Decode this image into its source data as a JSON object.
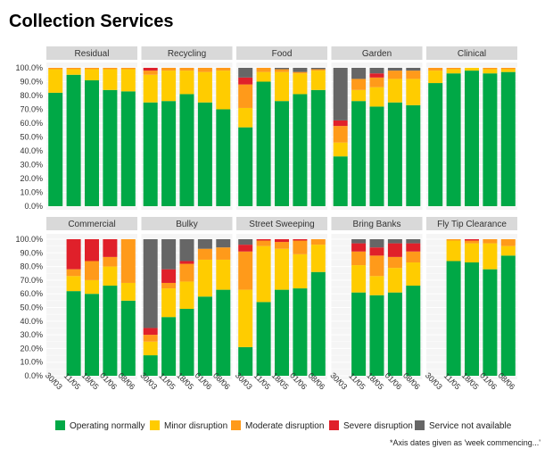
{
  "chart_data": {
    "type": "bar",
    "stacked": true,
    "title": "Collection Services",
    "footnote": "*Axis dates given as 'week commencing...'",
    "categories": [
      "30/03",
      "11/05",
      "18/05",
      "01/06",
      "08/06"
    ],
    "ylim": [
      0,
      100
    ],
    "yticks": [
      "0.0%",
      "10.0%",
      "20.0%",
      "30.0%",
      "40.0%",
      "50.0%",
      "60.0%",
      "70.0%",
      "80.0%",
      "90.0%",
      "100.0%"
    ],
    "legend_position": "bottom",
    "grid": true,
    "series_names": [
      "Operating normally",
      "Minor disruption",
      "Moderate disruption",
      "Severe disruption",
      "Service not available"
    ],
    "series_colors": [
      "#00a846",
      "#ffcc00",
      "#ff9a1a",
      "#e0202a",
      "#666666"
    ],
    "panels": [
      {
        "name": "Residual",
        "values": [
          [
            82,
            17,
            1,
            0,
            0
          ],
          [
            95,
            4,
            1,
            0,
            0
          ],
          [
            91,
            8,
            1,
            0,
            0
          ],
          [
            84,
            15,
            1,
            0,
            0
          ],
          [
            83,
            16,
            1,
            0,
            0
          ]
        ]
      },
      {
        "name": "Recycling",
        "values": [
          [
            75,
            20,
            3,
            2,
            0
          ],
          [
            76,
            22,
            2,
            0,
            0
          ],
          [
            81,
            17,
            2,
            0,
            0
          ],
          [
            75,
            22,
            3,
            0,
            0
          ],
          [
            70,
            28,
            2,
            0,
            0
          ]
        ]
      },
      {
        "name": "Food",
        "values": [
          [
            57,
            14,
            17,
            5,
            7
          ],
          [
            90,
            7,
            3,
            0,
            0
          ],
          [
            76,
            21,
            2,
            0,
            1
          ],
          [
            81,
            15,
            1,
            0,
            3
          ],
          [
            84,
            14,
            1,
            0,
            1
          ]
        ]
      },
      {
        "name": "Garden",
        "values": [
          [
            36,
            10,
            12,
            4,
            38
          ],
          [
            76,
            8,
            8,
            0,
            8
          ],
          [
            72,
            14,
            7,
            3,
            4
          ],
          [
            75,
            17,
            6,
            0,
            2
          ],
          [
            73,
            19,
            6,
            0,
            2
          ]
        ]
      },
      {
        "name": "Clinical",
        "values": [
          [
            89,
            9,
            2,
            0,
            0
          ],
          [
            96,
            3,
            1,
            0,
            0
          ],
          [
            98,
            2,
            0,
            0,
            0
          ],
          [
            96,
            3,
            1,
            0,
            0
          ],
          [
            97,
            2,
            1,
            0,
            0
          ]
        ]
      },
      {
        "name": "Commercial",
        "values": [
          null,
          [
            62,
            11,
            5,
            22,
            0
          ],
          [
            60,
            10,
            14,
            16,
            0
          ],
          [
            66,
            14,
            7,
            13,
            0
          ],
          [
            55,
            13,
            32,
            0,
            0
          ]
        ]
      },
      {
        "name": "Bulky",
        "values": [
          [
            15,
            10,
            5,
            5,
            65
          ],
          [
            43,
            21,
            4,
            10,
            22
          ],
          [
            49,
            20,
            13,
            2,
            16
          ],
          [
            58,
            27,
            8,
            0,
            7
          ],
          [
            63,
            22,
            9,
            0,
            6
          ]
        ]
      },
      {
        "name": "Street Sweeping",
        "values": [
          [
            21,
            42,
            28,
            5,
            4
          ],
          [
            54,
            41,
            4,
            1,
            0
          ],
          [
            63,
            30,
            5,
            2,
            0
          ],
          [
            64,
            25,
            10,
            1,
            0
          ],
          [
            76,
            20,
            4,
            0,
            0
          ]
        ]
      },
      {
        "name": "Bring Banks",
        "values": [
          null,
          [
            61,
            20,
            10,
            6,
            3
          ],
          [
            59,
            14,
            15,
            6,
            6
          ],
          [
            61,
            18,
            8,
            10,
            3
          ],
          [
            66,
            17,
            8,
            6,
            3
          ]
        ]
      },
      {
        "name": "Fly Tip Clearance",
        "values": [
          null,
          [
            84,
            15,
            1,
            0,
            0
          ],
          [
            83,
            14,
            2,
            1,
            0
          ],
          [
            78,
            19,
            3,
            0,
            0
          ],
          [
            88,
            7,
            5,
            0,
            0
          ]
        ]
      }
    ]
  }
}
